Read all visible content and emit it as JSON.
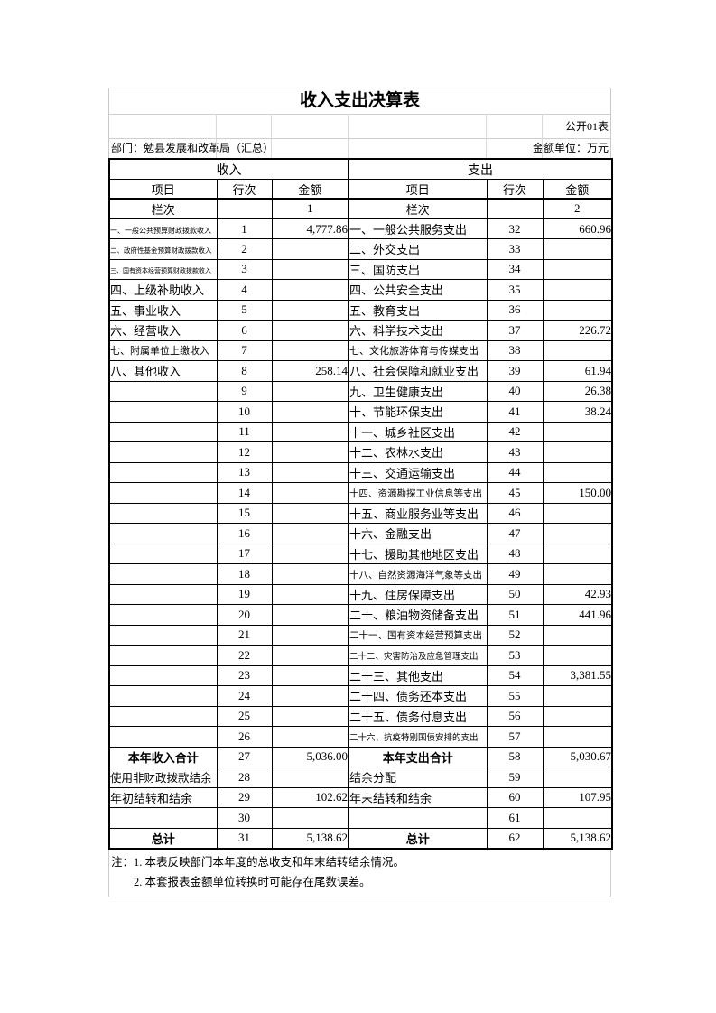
{
  "title": "收入支出决算表",
  "meta": {
    "table_code": "公开01表",
    "department": "部门：勉县发展和改革局（汇总）",
    "unit": "金额单位：万元"
  },
  "sections": {
    "income": "收入",
    "expense": "支出"
  },
  "columns": {
    "item": "项目",
    "line": "行次",
    "amount": "金额"
  },
  "colnum_row": {
    "label": "栏次",
    "income_no": "1",
    "expense_no": "2"
  },
  "rows": [
    {
      "income": {
        "item": "一、一般公共预算财政拨款收入",
        "line": "1",
        "amount": "4,777.86"
      },
      "expense": {
        "item": "一、一般公共服务支出",
        "line": "32",
        "amount": "660.96"
      }
    },
    {
      "income": {
        "item": "二、政府性基金预算财政拨款收入",
        "line": "2",
        "amount": ""
      },
      "expense": {
        "item": "二、外交支出",
        "line": "33",
        "amount": ""
      }
    },
    {
      "income": {
        "item": "三、国有资本经营预算财政拨款收入",
        "line": "3",
        "amount": ""
      },
      "expense": {
        "item": "三、国防支出",
        "line": "34",
        "amount": ""
      }
    },
    {
      "income": {
        "item": "四、上级补助收入",
        "line": "4",
        "amount": ""
      },
      "expense": {
        "item": "四、公共安全支出",
        "line": "35",
        "amount": ""
      }
    },
    {
      "income": {
        "item": "五、事业收入",
        "line": "5",
        "amount": ""
      },
      "expense": {
        "item": "五、教育支出",
        "line": "36",
        "amount": ""
      }
    },
    {
      "income": {
        "item": "六、经营收入",
        "line": "6",
        "amount": ""
      },
      "expense": {
        "item": "六、科学技术支出",
        "line": "37",
        "amount": "226.72"
      }
    },
    {
      "income": {
        "item": "七、附属单位上缴收入",
        "line": "7",
        "amount": ""
      },
      "expense": {
        "item": "七、文化旅游体育与传媒支出",
        "line": "38",
        "amount": ""
      }
    },
    {
      "income": {
        "item": "八、其他收入",
        "line": "8",
        "amount": "258.14"
      },
      "expense": {
        "item": "八、社会保障和就业支出",
        "line": "39",
        "amount": "61.94"
      }
    },
    {
      "income": {
        "item": "",
        "line": "9",
        "amount": ""
      },
      "expense": {
        "item": "九、卫生健康支出",
        "line": "40",
        "amount": "26.38"
      }
    },
    {
      "income": {
        "item": "",
        "line": "10",
        "amount": ""
      },
      "expense": {
        "item": "十、节能环保支出",
        "line": "41",
        "amount": "38.24"
      }
    },
    {
      "income": {
        "item": "",
        "line": "11",
        "amount": ""
      },
      "expense": {
        "item": "十一、城乡社区支出",
        "line": "42",
        "amount": ""
      }
    },
    {
      "income": {
        "item": "",
        "line": "12",
        "amount": ""
      },
      "expense": {
        "item": "十二、农林水支出",
        "line": "43",
        "amount": ""
      }
    },
    {
      "income": {
        "item": "",
        "line": "13",
        "amount": ""
      },
      "expense": {
        "item": "十三、交通运输支出",
        "line": "44",
        "amount": ""
      }
    },
    {
      "income": {
        "item": "",
        "line": "14",
        "amount": ""
      },
      "expense": {
        "item": "十四、资源勘探工业信息等支出",
        "line": "45",
        "amount": "150.00"
      }
    },
    {
      "income": {
        "item": "",
        "line": "15",
        "amount": ""
      },
      "expense": {
        "item": "十五、商业服务业等支出",
        "line": "46",
        "amount": ""
      }
    },
    {
      "income": {
        "item": "",
        "line": "16",
        "amount": ""
      },
      "expense": {
        "item": "十六、金融支出",
        "line": "47",
        "amount": ""
      }
    },
    {
      "income": {
        "item": "",
        "line": "17",
        "amount": ""
      },
      "expense": {
        "item": "十七、援助其他地区支出",
        "line": "48",
        "amount": ""
      }
    },
    {
      "income": {
        "item": "",
        "line": "18",
        "amount": ""
      },
      "expense": {
        "item": "十八、自然资源海洋气象等支出",
        "line": "49",
        "amount": ""
      }
    },
    {
      "income": {
        "item": "",
        "line": "19",
        "amount": ""
      },
      "expense": {
        "item": "十九、住房保障支出",
        "line": "50",
        "amount": "42.93"
      }
    },
    {
      "income": {
        "item": "",
        "line": "20",
        "amount": ""
      },
      "expense": {
        "item": "二十、粮油物资储备支出",
        "line": "51",
        "amount": "441.96"
      }
    },
    {
      "income": {
        "item": "",
        "line": "21",
        "amount": ""
      },
      "expense": {
        "item": "二十一、国有资本经营预算支出",
        "line": "52",
        "amount": ""
      }
    },
    {
      "income": {
        "item": "",
        "line": "22",
        "amount": ""
      },
      "expense": {
        "item": "二十二、灾害防治及应急管理支出",
        "line": "53",
        "amount": ""
      }
    },
    {
      "income": {
        "item": "",
        "line": "23",
        "amount": ""
      },
      "expense": {
        "item": "二十三、其他支出",
        "line": "54",
        "amount": "3,381.55"
      }
    },
    {
      "income": {
        "item": "",
        "line": "24",
        "amount": ""
      },
      "expense": {
        "item": "二十四、债务还本支出",
        "line": "55",
        "amount": ""
      }
    },
    {
      "income": {
        "item": "",
        "line": "25",
        "amount": ""
      },
      "expense": {
        "item": "二十五、债务付息支出",
        "line": "56",
        "amount": ""
      }
    },
    {
      "income": {
        "item": "",
        "line": "26",
        "amount": ""
      },
      "expense": {
        "item": "二十六、抗疫特别国债安排的支出",
        "line": "57",
        "amount": ""
      }
    },
    {
      "income": {
        "item": "本年收入合计",
        "line": "27",
        "amount": "5,036.00",
        "total": true
      },
      "expense": {
        "item": "本年支出合计",
        "line": "58",
        "amount": "5,030.67",
        "total": true
      }
    },
    {
      "income": {
        "item": "使用非财政拨款结余",
        "line": "28",
        "amount": ""
      },
      "expense": {
        "item": "结余分配",
        "line": "59",
        "amount": ""
      }
    },
    {
      "income": {
        "item": "年初结转和结余",
        "line": "29",
        "amount": "102.62"
      },
      "expense": {
        "item": "年末结转和结余",
        "line": "60",
        "amount": "107.95"
      }
    },
    {
      "income": {
        "item": "",
        "line": "30",
        "amount": ""
      },
      "expense": {
        "item": "",
        "line": "61",
        "amount": ""
      }
    },
    {
      "income": {
        "item": "总计",
        "line": "31",
        "amount": "5,138.62",
        "total": true
      },
      "expense": {
        "item": "总计",
        "line": "62",
        "amount": "5,138.62",
        "total": true
      }
    }
  ],
  "notes": {
    "line1": "注：1. 本表反映部门本年度的总收支和年末结转结余情况。",
    "line2": "2. 本套报表金额单位转换时可能存在尾数误差。"
  }
}
